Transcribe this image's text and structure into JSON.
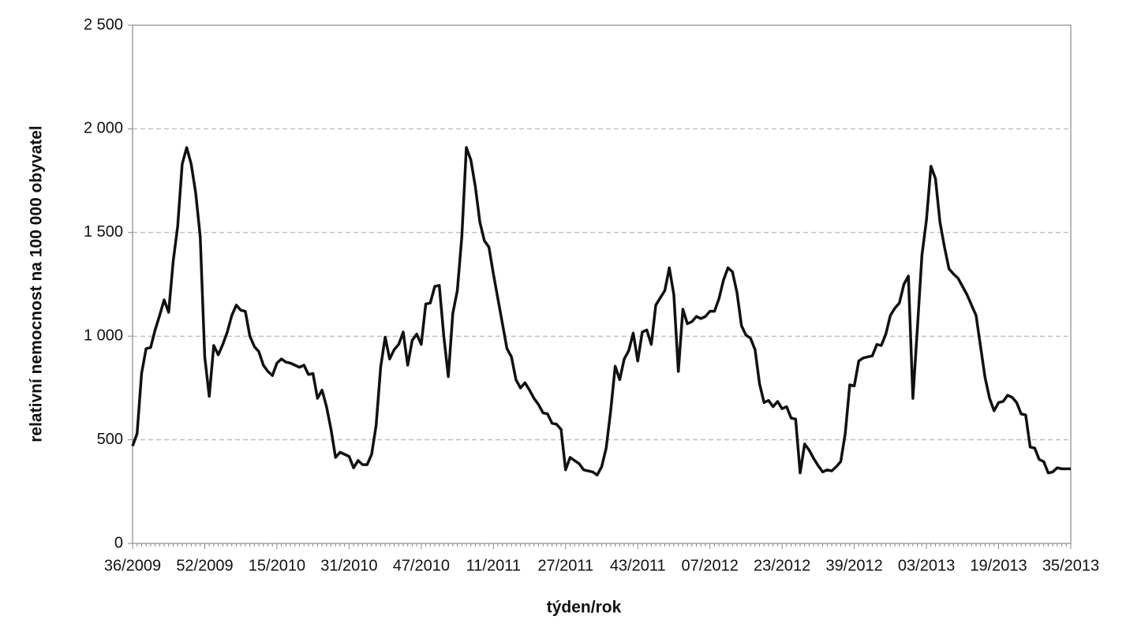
{
  "chart_data": {
    "type": "line",
    "x_label": "týden/rok",
    "y_label": "relativní nemocnost na 100 000 obyvatel",
    "color": "#111111",
    "grid": true,
    "ylim": [
      0,
      2500
    ],
    "yticks": [
      0,
      500,
      {
        "value": 1000,
        "label": "1 000"
      },
      {
        "value": 1500,
        "label": "1 500"
      },
      {
        "value": 2000,
        "label": "2 000"
      },
      {
        "value": 2500,
        "label": "2 500"
      }
    ],
    "categories": [
      "36/2009",
      null,
      null,
      null,
      null,
      null,
      null,
      null,
      null,
      null,
      null,
      null,
      null,
      null,
      null,
      null,
      "52/2009",
      null,
      null,
      null,
      null,
      null,
      null,
      null,
      null,
      null,
      null,
      null,
      null,
      null,
      null,
      null,
      "15/2010",
      null,
      null,
      null,
      null,
      null,
      null,
      null,
      null,
      null,
      null,
      null,
      null,
      null,
      null,
      null,
      "31/2010",
      null,
      null,
      null,
      null,
      null,
      null,
      null,
      null,
      null,
      null,
      null,
      null,
      null,
      null,
      null,
      "47/2010",
      null,
      null,
      null,
      null,
      null,
      null,
      null,
      null,
      null,
      null,
      null,
      null,
      null,
      null,
      null,
      "11/2011",
      null,
      null,
      null,
      null,
      null,
      null,
      null,
      null,
      null,
      null,
      null,
      null,
      null,
      null,
      null,
      "27/2011",
      null,
      null,
      null,
      null,
      null,
      null,
      null,
      null,
      null,
      null,
      null,
      null,
      null,
      null,
      null,
      "43/2011",
      null,
      null,
      null,
      null,
      null,
      null,
      null,
      null,
      null,
      null,
      null,
      null,
      null,
      null,
      null,
      "07/2012",
      null,
      null,
      null,
      null,
      null,
      null,
      null,
      null,
      null,
      null,
      null,
      null,
      null,
      null,
      null,
      "23/2012",
      null,
      null,
      null,
      null,
      null,
      null,
      null,
      null,
      null,
      null,
      null,
      null,
      null,
      null,
      null,
      "39/2012",
      null,
      null,
      null,
      null,
      null,
      null,
      null,
      null,
      null,
      null,
      null,
      null,
      null,
      null,
      null,
      "03/2013",
      null,
      null,
      null,
      null,
      null,
      null,
      null,
      null,
      null,
      null,
      null,
      null,
      null,
      null,
      null,
      "19/2013",
      null,
      null,
      null,
      null,
      null,
      null,
      null,
      null,
      null,
      null,
      null,
      null,
      null,
      null,
      null,
      "35/2013"
    ],
    "values": [
      470,
      530,
      820,
      940,
      945,
      1030,
      1100,
      1175,
      1115,
      1360,
      1530,
      1830,
      1910,
      1830,
      1690,
      1480,
      900,
      710,
      955,
      910,
      960,
      1020,
      1100,
      1150,
      1125,
      1120,
      1000,
      950,
      925,
      860,
      830,
      810,
      870,
      890,
      875,
      870,
      860,
      850,
      860,
      815,
      820,
      700,
      740,
      660,
      550,
      415,
      440,
      430,
      420,
      365,
      400,
      380,
      380,
      430,
      570,
      850,
      995,
      890,
      935,
      960,
      1020,
      860,
      980,
      1010,
      960,
      1155,
      1160,
      1240,
      1245,
      1000,
      805,
      1110,
      1220,
      1480,
      1910,
      1850,
      1720,
      1550,
      1460,
      1430,
      1300,
      1180,
      1060,
      940,
      900,
      790,
      750,
      775,
      740,
      700,
      670,
      630,
      625,
      580,
      575,
      550,
      355,
      415,
      400,
      385,
      355,
      350,
      345,
      330,
      370,
      460,
      640,
      855,
      790,
      890,
      930,
      1015,
      880,
      1020,
      1030,
      960,
      1150,
      1185,
      1220,
      1330,
      1200,
      830,
      1130,
      1060,
      1070,
      1095,
      1085,
      1095,
      1120,
      1120,
      1180,
      1270,
      1330,
      1310,
      1210,
      1050,
      1005,
      990,
      935,
      770,
      680,
      690,
      660,
      685,
      650,
      660,
      605,
      600,
      340,
      480,
      450,
      410,
      375,
      345,
      355,
      350,
      370,
      395,
      530,
      765,
      760,
      880,
      895,
      900,
      905,
      960,
      955,
      1010,
      1100,
      1135,
      1160,
      1250,
      1290,
      700,
      1040,
      1390,
      1560,
      1820,
      1760,
      1550,
      1430,
      1325,
      1300,
      1280,
      1240,
      1200,
      1150,
      1100,
      950,
      800,
      700,
      640,
      680,
      685,
      715,
      705,
      680,
      625,
      620,
      465,
      460,
      405,
      395,
      340,
      345,
      365,
      360,
      360,
      360
    ]
  }
}
